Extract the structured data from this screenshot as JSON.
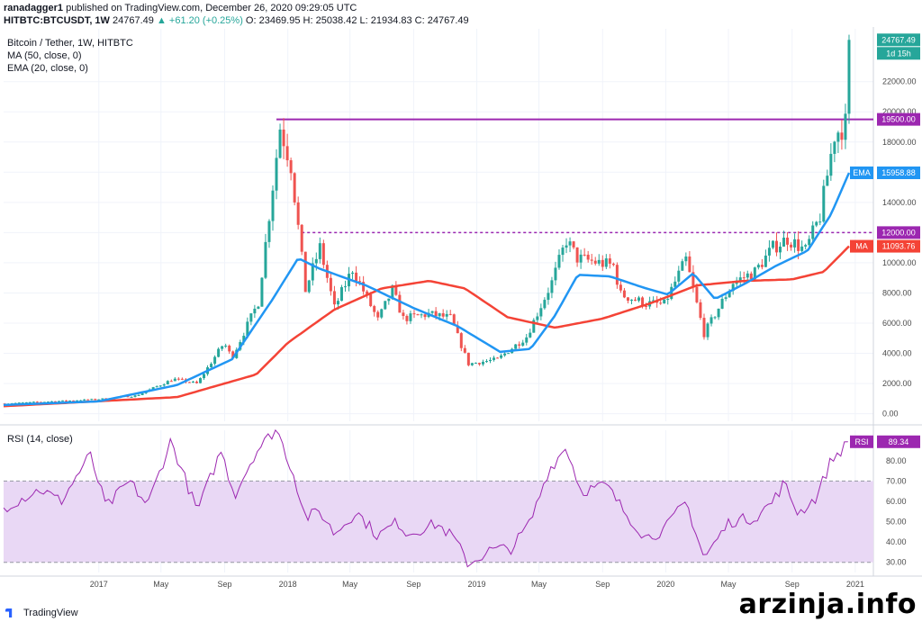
{
  "header": {
    "publisher": "ranadagger1",
    "published_text": "published on TradingView.com, December 26, 2020 09:29:05 UTC",
    "symbol": "HITBTC:BTCUSDT, 1W",
    "last": "24767.49",
    "change": "+61.20 (+0.25%)",
    "ohlc_text": "O: 23469.95 H: 25038.42 L: 21934.83 C: 24767.49"
  },
  "legend": {
    "title": "Bitcoin / Tether, 1W, HITBTC",
    "ma": "MA (50, close, 0)",
    "ema": "EMA (20, close, 0)",
    "rsi": "RSI (14, close)"
  },
  "branding": {
    "tradingview": "TradingView",
    "watermark": "arzinja.info"
  },
  "colors": {
    "up": "#26a69a",
    "down": "#ef5350",
    "ema": "#2196f3",
    "ma": "#f44336",
    "level": "#9c27b0",
    "rsi": "#9c27b0",
    "rsi_band": "#e9d8f5"
  },
  "chart_data": [
    {
      "type": "candlestick",
      "title": "Bitcoin / Tether, 1W, HITBTC",
      "currency": "USDT",
      "ylim": [
        -500,
        25500
      ],
      "y_ticks": [
        0,
        2000,
        4000,
        6000,
        8000,
        10000,
        12000,
        14000,
        16000,
        18000,
        20000,
        22000
      ],
      "x_ticks": [
        "2017",
        "May",
        "Sep",
        "2018",
        "May",
        "Sep",
        "2019",
        "May",
        "Sep",
        "2020",
        "May",
        "Sep",
        "2021"
      ],
      "x_tick_dates": [
        "2017-01-01",
        "2017-05-01",
        "2017-09-01",
        "2018-01-01",
        "2018-05-01",
        "2018-09-01",
        "2019-01-01",
        "2019-05-01",
        "2019-09-01",
        "2020-01-01",
        "2020-05-01",
        "2020-09-01",
        "2021-01-01"
      ],
      "x_range": [
        "2016-07-01",
        "2021-02-05"
      ],
      "horizontal_lines": [
        {
          "label": "19500.00",
          "value": 19500,
          "style": "solid",
          "start": "2017-12-10"
        },
        {
          "label": "12000.00",
          "value": 12000,
          "style": "dashed",
          "start": "2018-01-28"
        }
      ],
      "price_labels": [
        {
          "label": "24767.49",
          "value": 24767.49,
          "role": "last price"
        },
        {
          "label": "1d 15h",
          "role": "bar countdown"
        },
        {
          "label": "15958.88",
          "value": 15958.88,
          "tag": "EMA"
        },
        {
          "label": "11093.76",
          "value": 11093.76,
          "tag": "MA"
        }
      ],
      "close_anchors": [
        [
          "2016-07-01",
          670
        ],
        [
          "2016-12-31",
          960
        ],
        [
          "2017-03-15",
          1200
        ],
        [
          "2017-05-25",
          2300
        ],
        [
          "2017-07-10",
          2000
        ],
        [
          "2017-08-31",
          4700
        ],
        [
          "2017-09-15",
          3700
        ],
        [
          "2017-11-05",
          7400
        ],
        [
          "2017-12-17",
          19000
        ],
        [
          "2018-01-07",
          16500
        ],
        [
          "2018-02-04",
          8200
        ],
        [
          "2018-03-04",
          11000
        ],
        [
          "2018-04-01",
          7000
        ],
        [
          "2018-05-06",
          9600
        ],
        [
          "2018-06-24",
          6200
        ],
        [
          "2018-07-22",
          8200
        ],
        [
          "2018-08-12",
          6300
        ],
        [
          "2018-09-30",
          6600
        ],
        [
          "2018-11-11",
          6350
        ],
        [
          "2018-12-16",
          3300
        ],
        [
          "2019-02-10",
          3600
        ],
        [
          "2019-04-07",
          5100
        ],
        [
          "2019-05-26",
          8700
        ],
        [
          "2019-06-23",
          11500
        ],
        [
          "2019-07-14",
          10300
        ],
        [
          "2019-09-22",
          9800
        ],
        [
          "2019-10-06",
          7900
        ],
        [
          "2019-11-24",
          7300
        ],
        [
          "2019-12-29",
          7250
        ],
        [
          "2020-02-09",
          10200
        ],
        [
          "2020-03-15",
          5300
        ],
        [
          "2020-05-10",
          8700
        ],
        [
          "2020-06-21",
          9400
        ],
        [
          "2020-07-26",
          11000
        ],
        [
          "2020-08-23",
          11600
        ],
        [
          "2020-09-27",
          10800
        ],
        [
          "2020-10-25",
          13100
        ],
        [
          "2020-11-22",
          18500
        ],
        [
          "2020-12-13",
          19200
        ],
        [
          "2020-12-20",
          24767.49
        ]
      ],
      "ema20_anchors": [
        [
          "2016-07-01",
          580
        ],
        [
          "2017-01-01",
          820
        ],
        [
          "2017-06-01",
          1900
        ],
        [
          "2017-09-15",
          3600
        ],
        [
          "2017-12-01",
          7500
        ],
        [
          "2018-01-21",
          10300
        ],
        [
          "2018-03-04",
          9600
        ],
        [
          "2018-06-01",
          8500
        ],
        [
          "2018-09-01",
          7000
        ],
        [
          "2018-11-25",
          5800
        ],
        [
          "2019-02-15",
          4100
        ],
        [
          "2019-04-15",
          4300
        ],
        [
          "2019-06-01",
          6500
        ],
        [
          "2019-07-15",
          9200
        ],
        [
          "2019-09-15",
          9100
        ],
        [
          "2019-11-24",
          8300
        ],
        [
          "2020-01-05",
          7900
        ],
        [
          "2020-02-23",
          9300
        ],
        [
          "2020-04-05",
          7600
        ],
        [
          "2020-06-01",
          8600
        ],
        [
          "2020-08-01",
          9800
        ],
        [
          "2020-10-01",
          10800
        ],
        [
          "2020-11-15",
          13200
        ],
        [
          "2020-12-20",
          15958.88
        ]
      ],
      "ma50_anchors": [
        [
          "2016-07-01",
          500
        ],
        [
          "2017-06-01",
          1100
        ],
        [
          "2017-11-01",
          2600
        ],
        [
          "2018-01-01",
          4700
        ],
        [
          "2018-04-01",
          6900
        ],
        [
          "2018-07-01",
          8300
        ],
        [
          "2018-10-01",
          8800
        ],
        [
          "2018-12-09",
          8300
        ],
        [
          "2019-03-01",
          6400
        ],
        [
          "2019-06-01",
          5700
        ],
        [
          "2019-09-01",
          6300
        ],
        [
          "2019-12-01",
          7300
        ],
        [
          "2020-03-01",
          8500
        ],
        [
          "2020-06-01",
          8800
        ],
        [
          "2020-09-01",
          8900
        ],
        [
          "2020-11-01",
          9400
        ],
        [
          "2020-12-20",
          11093.76
        ]
      ]
    },
    {
      "type": "line",
      "title": "RSI (14, close)",
      "ylim": [
        25,
        95
      ],
      "y_ticks": [
        30,
        40,
        50,
        60,
        70,
        80
      ],
      "band": [
        30,
        70
      ],
      "last_label": "89.34",
      "last_value": 89.34,
      "anchors": [
        [
          "2016-07-01",
          57
        ],
        [
          "2016-09-10",
          66
        ],
        [
          "2016-10-20",
          60
        ],
        [
          "2016-12-15",
          83
        ],
        [
          "2017-01-15",
          57
        ],
        [
          "2017-03-01",
          70
        ],
        [
          "2017-04-05",
          58
        ],
        [
          "2017-05-20",
          90
        ],
        [
          "2017-07-10",
          55
        ],
        [
          "2017-08-25",
          85
        ],
        [
          "2017-09-20",
          63
        ],
        [
          "2017-10-30",
          84
        ],
        [
          "2017-12-10",
          96
        ],
        [
          "2018-01-14",
          72
        ],
        [
          "2018-02-04",
          52
        ],
        [
          "2018-03-04",
          55
        ],
        [
          "2018-04-01",
          44
        ],
        [
          "2018-05-13",
          55
        ],
        [
          "2018-06-24",
          43
        ],
        [
          "2018-08-01",
          50
        ],
        [
          "2018-08-20",
          44
        ],
        [
          "2018-10-15",
          49
        ],
        [
          "2018-11-18",
          42
        ],
        [
          "2018-12-16",
          29
        ],
        [
          "2019-01-27",
          36
        ],
        [
          "2019-03-10",
          37
        ],
        [
          "2019-04-15",
          50
        ],
        [
          "2019-05-19",
          75
        ],
        [
          "2019-06-23",
          87
        ],
        [
          "2019-07-21",
          65
        ],
        [
          "2019-09-08",
          68
        ],
        [
          "2019-10-13",
          55
        ],
        [
          "2019-11-24",
          42
        ],
        [
          "2019-12-29",
          46
        ],
        [
          "2020-02-09",
          60
        ],
        [
          "2020-03-15",
          32
        ],
        [
          "2020-05-03",
          50
        ],
        [
          "2020-06-21",
          52
        ],
        [
          "2020-07-26",
          60
        ],
        [
          "2020-08-16",
          69
        ],
        [
          "2020-09-13",
          54
        ],
        [
          "2020-10-18",
          62
        ],
        [
          "2020-11-15",
          80
        ],
        [
          "2020-12-20",
          89.34
        ]
      ]
    }
  ]
}
